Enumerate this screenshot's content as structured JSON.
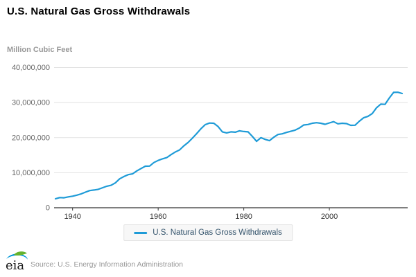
{
  "title": "U.S. Natural Gas Gross Withdrawals",
  "y_axis_label": "Million Cubic Feet",
  "legend": {
    "label": "U.S. Natural Gas Gross Withdrawals"
  },
  "footer": {
    "logo_text": "eia",
    "source": "Source: U.S. Energy Information Administration"
  },
  "colors": {
    "line": "#1e9bd7",
    "grid": "#e2e2e2",
    "axis": "#333333",
    "y_tick": "#666666",
    "x_tick": "#333333",
    "title": "#000000",
    "unit_label": "#999999",
    "legend_text": "#33536b",
    "legend_bg": "#f7f7f7",
    "legend_border": "#e3e3e3",
    "source_text": "#999999",
    "logo_blue": "#0096d7",
    "logo_green": "#65b32e",
    "logo_text_color": "#1a1a1a"
  },
  "chart_data": {
    "type": "line",
    "title": "U.S. Natural Gas Gross Withdrawals",
    "xlabel": "",
    "ylabel": "Million Cubic Feet",
    "xlim": [
      1936,
      2017
    ],
    "ylim": [
      0,
      40000000
    ],
    "xticks": [
      1940,
      1960,
      1980,
      2000
    ],
    "yticks": [
      0,
      10000000,
      20000000,
      30000000,
      40000000
    ],
    "grid": "horizontal",
    "legend_position": "bottom",
    "x": [
      1936,
      1937,
      1938,
      1939,
      1940,
      1941,
      1942,
      1943,
      1944,
      1945,
      1946,
      1947,
      1948,
      1949,
      1950,
      1951,
      1952,
      1953,
      1954,
      1955,
      1956,
      1957,
      1958,
      1959,
      1960,
      1961,
      1962,
      1963,
      1964,
      1965,
      1966,
      1967,
      1968,
      1969,
      1970,
      1971,
      1972,
      1973,
      1974,
      1975,
      1976,
      1977,
      1978,
      1979,
      1980,
      1981,
      1982,
      1983,
      1984,
      1985,
      1986,
      1987,
      1988,
      1989,
      1990,
      1991,
      1992,
      1993,
      1994,
      1995,
      1996,
      1997,
      1998,
      1999,
      2000,
      2001,
      2002,
      2003,
      2004,
      2005,
      2006,
      2007,
      2008,
      2009,
      2010,
      2011,
      2012,
      2013,
      2014,
      2015,
      2016,
      2017
    ],
    "series": [
      {
        "name": "U.S. Natural Gas Gross Withdrawals",
        "values": [
          2550000,
          2900000,
          2850000,
          3100000,
          3300000,
          3600000,
          3950000,
          4450000,
          4900000,
          5050000,
          5250000,
          5700000,
          6150000,
          6400000,
          7100000,
          8250000,
          8900000,
          9450000,
          9650000,
          10500000,
          11200000,
          11850000,
          11900000,
          12900000,
          13500000,
          13950000,
          14300000,
          15150000,
          15900000,
          16500000,
          17650000,
          18650000,
          19850000,
          21150000,
          22550000,
          23700000,
          24150000,
          24100000,
          23150000,
          21650000,
          21350000,
          21650000,
          21550000,
          21950000,
          21750000,
          21650000,
          20350000,
          18950000,
          20000000,
          19500000,
          19150000,
          20100000,
          20900000,
          21100000,
          21500000,
          21800000,
          22150000,
          22750000,
          23600000,
          23750000,
          24100000,
          24250000,
          24100000,
          23800000,
          24200000,
          24550000,
          23950000,
          24100000,
          24000000,
          23500000,
          23550000,
          24700000,
          25650000,
          26050000,
          26850000,
          28500000,
          29550000,
          29500000,
          31300000,
          32900000,
          32950000,
          32600000
        ]
      }
    ]
  }
}
